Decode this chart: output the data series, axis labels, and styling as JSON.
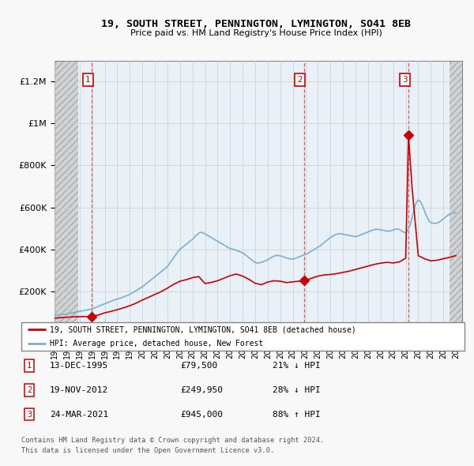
{
  "title": "19, SOUTH STREET, PENNINGTON, LYMINGTON, SO41 8EB",
  "subtitle": "Price paid vs. HM Land Registry's House Price Index (HPI)",
  "legend_line1": "19, SOUTH STREET, PENNINGTON, LYMINGTON, SO41 8EB (detached house)",
  "legend_line2": "HPI: Average price, detached house, New Forest",
  "footer1": "Contains HM Land Registry data © Crown copyright and database right 2024.",
  "footer2": "This data is licensed under the Open Government Licence v3.0.",
  "sale_points": [
    {
      "num": 1,
      "year": 1995.96,
      "price": 79500
    },
    {
      "num": 2,
      "year": 2012.88,
      "price": 249950
    },
    {
      "num": 3,
      "year": 2021.22,
      "price": 945000
    }
  ],
  "table_rows": [
    {
      "num": "1",
      "date": "13-DEC-1995",
      "price": "£79,500",
      "change": "21% ↓ HPI"
    },
    {
      "num": "2",
      "date": "19-NOV-2012",
      "price": "£249,950",
      "change": "28% ↓ HPI"
    },
    {
      "num": "3",
      "date": "24-MAR-2021",
      "price": "£945,000",
      "change": "88% ↑ HPI"
    }
  ],
  "hpi_x": [
    1993.0,
    1993.08,
    1993.17,
    1993.25,
    1993.33,
    1993.42,
    1993.5,
    1993.58,
    1993.67,
    1993.75,
    1993.83,
    1993.92,
    1994.0,
    1994.08,
    1994.17,
    1994.25,
    1994.33,
    1994.42,
    1994.5,
    1994.58,
    1994.67,
    1994.75,
    1994.83,
    1994.92,
    1995.0,
    1995.08,
    1995.17,
    1995.25,
    1995.33,
    1995.42,
    1995.5,
    1995.58,
    1995.67,
    1995.75,
    1995.83,
    1995.92,
    1996.0,
    1996.08,
    1996.17,
    1996.25,
    1996.33,
    1996.42,
    1996.5,
    1996.58,
    1996.67,
    1996.75,
    1996.83,
    1996.92,
    1997.0,
    1997.08,
    1997.17,
    1997.25,
    1997.33,
    1997.42,
    1997.5,
    1997.58,
    1997.67,
    1997.75,
    1997.83,
    1997.92,
    1998.0,
    1998.08,
    1998.17,
    1998.25,
    1998.33,
    1998.42,
    1998.5,
    1998.58,
    1998.67,
    1998.75,
    1998.83,
    1998.92,
    1999.0,
    1999.08,
    1999.17,
    1999.25,
    1999.33,
    1999.42,
    1999.5,
    1999.58,
    1999.67,
    1999.75,
    1999.83,
    1999.92,
    2000.0,
    2000.08,
    2000.17,
    2000.25,
    2000.33,
    2000.42,
    2000.5,
    2000.58,
    2000.67,
    2000.75,
    2000.83,
    2000.92,
    2001.0,
    2001.08,
    2001.17,
    2001.25,
    2001.33,
    2001.42,
    2001.5,
    2001.58,
    2001.67,
    2001.75,
    2001.83,
    2001.92,
    2002.0,
    2002.08,
    2002.17,
    2002.25,
    2002.33,
    2002.42,
    2002.5,
    2002.58,
    2002.67,
    2002.75,
    2002.83,
    2002.92,
    2003.0,
    2003.08,
    2003.17,
    2003.25,
    2003.33,
    2003.42,
    2003.5,
    2003.58,
    2003.67,
    2003.75,
    2003.83,
    2003.92,
    2004.0,
    2004.08,
    2004.17,
    2004.25,
    2004.33,
    2004.42,
    2004.5,
    2004.58,
    2004.67,
    2004.75,
    2004.83,
    2004.92,
    2005.0,
    2005.08,
    2005.17,
    2005.25,
    2005.33,
    2005.42,
    2005.5,
    2005.58,
    2005.67,
    2005.75,
    2005.83,
    2005.92,
    2006.0,
    2006.08,
    2006.17,
    2006.25,
    2006.33,
    2006.42,
    2006.5,
    2006.58,
    2006.67,
    2006.75,
    2006.83,
    2006.92,
    2007.0,
    2007.08,
    2007.17,
    2007.25,
    2007.33,
    2007.42,
    2007.5,
    2007.58,
    2007.67,
    2007.75,
    2007.83,
    2007.92,
    2008.0,
    2008.08,
    2008.17,
    2008.25,
    2008.33,
    2008.42,
    2008.5,
    2008.58,
    2008.67,
    2008.75,
    2008.83,
    2008.92,
    2009.0,
    2009.08,
    2009.17,
    2009.25,
    2009.33,
    2009.42,
    2009.5,
    2009.58,
    2009.67,
    2009.75,
    2009.83,
    2009.92,
    2010.0,
    2010.08,
    2010.17,
    2010.25,
    2010.33,
    2010.42,
    2010.5,
    2010.58,
    2010.67,
    2010.75,
    2010.83,
    2010.92,
    2011.0,
    2011.08,
    2011.17,
    2011.25,
    2011.33,
    2011.42,
    2011.5,
    2011.58,
    2011.67,
    2011.75,
    2011.83,
    2011.92,
    2012.0,
    2012.08,
    2012.17,
    2012.25,
    2012.33,
    2012.42,
    2012.5,
    2012.58,
    2012.67,
    2012.75,
    2012.83,
    2012.92,
    2013.0,
    2013.08,
    2013.17,
    2013.25,
    2013.33,
    2013.42,
    2013.5,
    2013.58,
    2013.67,
    2013.75,
    2013.83,
    2013.92,
    2014.0,
    2014.08,
    2014.17,
    2014.25,
    2014.33,
    2014.42,
    2014.5,
    2014.58,
    2014.67,
    2014.75,
    2014.83,
    2014.92,
    2015.0,
    2015.08,
    2015.17,
    2015.25,
    2015.33,
    2015.42,
    2015.5,
    2015.58,
    2015.67,
    2015.75,
    2015.83,
    2015.92,
    2016.0,
    2016.08,
    2016.17,
    2016.25,
    2016.33,
    2016.42,
    2016.5,
    2016.58,
    2016.67,
    2016.75,
    2016.83,
    2016.92,
    2017.0,
    2017.08,
    2017.17,
    2017.25,
    2017.33,
    2017.42,
    2017.5,
    2017.58,
    2017.67,
    2017.75,
    2017.83,
    2017.92,
    2018.0,
    2018.08,
    2018.17,
    2018.25,
    2018.33,
    2018.42,
    2018.5,
    2018.58,
    2018.67,
    2018.75,
    2018.83,
    2018.92,
    2019.0,
    2019.08,
    2019.17,
    2019.25,
    2019.33,
    2019.42,
    2019.5,
    2019.58,
    2019.67,
    2019.75,
    2019.83,
    2019.92,
    2020.0,
    2020.08,
    2020.17,
    2020.25,
    2020.33,
    2020.42,
    2020.5,
    2020.58,
    2020.67,
    2020.75,
    2020.83,
    2020.92,
    2021.0,
    2021.08,
    2021.17,
    2021.25,
    2021.33,
    2021.42,
    2021.5,
    2021.58,
    2021.67,
    2021.75,
    2021.83,
    2021.92,
    2022.0,
    2022.08,
    2022.17,
    2022.25,
    2022.33,
    2022.42,
    2022.5,
    2022.58,
    2022.67,
    2022.75,
    2022.83,
    2022.92,
    2023.0,
    2023.08,
    2023.17,
    2023.25,
    2023.33,
    2023.42,
    2023.5,
    2023.58,
    2023.67,
    2023.75,
    2023.83,
    2023.92,
    2024.0,
    2024.08,
    2024.17,
    2024.25,
    2024.33,
    2024.42,
    2024.5,
    2024.58,
    2024.67,
    2024.75,
    2024.83,
    2024.92,
    2025.0
  ],
  "hpi_y": [
    85000,
    86000,
    86500,
    87000,
    87500,
    88000,
    88500,
    89000,
    89500,
    90000,
    90500,
    91000,
    92000,
    93000,
    94000,
    95000,
    96000,
    97000,
    98000,
    99000,
    100000,
    101000,
    102000,
    103000,
    104000,
    105000,
    106000,
    107000,
    108000,
    109000,
    110000,
    111000,
    112000,
    113000,
    114000,
    115000,
    116000,
    118000,
    120000,
    122000,
    124000,
    126000,
    128000,
    130000,
    132000,
    134000,
    136000,
    138000,
    140000,
    142000,
    144000,
    146000,
    148000,
    150000,
    152000,
    154000,
    156000,
    158000,
    160000,
    162000,
    163000,
    164000,
    165000,
    167000,
    169000,
    171000,
    173000,
    175000,
    177000,
    179000,
    181000,
    183000,
    185000,
    188000,
    191000,
    194000,
    197000,
    200000,
    203000,
    206000,
    209000,
    212000,
    215000,
    218000,
    221000,
    225000,
    229000,
    233000,
    237000,
    241000,
    245000,
    249000,
    253000,
    257000,
    261000,
    265000,
    269000,
    273000,
    277000,
    281000,
    285000,
    289000,
    293000,
    297000,
    301000,
    305000,
    309000,
    313000,
    318000,
    325000,
    332000,
    339000,
    346000,
    353000,
    360000,
    367000,
    374000,
    381000,
    388000,
    395000,
    400000,
    404000,
    408000,
    412000,
    416000,
    420000,
    424000,
    428000,
    432000,
    436000,
    440000,
    444000,
    448000,
    452000,
    458000,
    464000,
    468000,
    472000,
    476000,
    480000,
    481000,
    480000,
    478000,
    476000,
    474000,
    471000,
    468000,
    465000,
    462000,
    459000,
    456000,
    453000,
    450000,
    447000,
    444000,
    441000,
    438000,
    436000,
    433000,
    430000,
    427000,
    424000,
    421000,
    418000,
    415000,
    412000,
    409000,
    406000,
    404000,
    403000,
    401000,
    400000,
    399000,
    397000,
    395000,
    393000,
    391000,
    389000,
    387000,
    385000,
    383000,
    380000,
    376000,
    372000,
    368000,
    364000,
    360000,
    356000,
    352000,
    348000,
    344000,
    340000,
    337000,
    336000,
    335000,
    335000,
    336000,
    337000,
    338000,
    340000,
    342000,
    344000,
    346000,
    348000,
    350000,
    353000,
    356000,
    359000,
    362000,
    365000,
    367000,
    369000,
    370000,
    371000,
    371000,
    370000,
    369000,
    368000,
    366000,
    364000,
    362000,
    360000,
    358000,
    357000,
    356000,
    355000,
    354000,
    354000,
    354000,
    355000,
    356000,
    358000,
    360000,
    362000,
    364000,
    366000,
    368000,
    370000,
    372000,
    374000,
    376000,
    378000,
    380000,
    383000,
    386000,
    389000,
    392000,
    395000,
    398000,
    401000,
    404000,
    407000,
    410000,
    413000,
    416000,
    420000,
    424000,
    428000,
    432000,
    436000,
    440000,
    444000,
    448000,
    452000,
    456000,
    459000,
    462000,
    465000,
    468000,
    470000,
    472000,
    473000,
    474000,
    474000,
    474000,
    473000,
    472000,
    471000,
    470000,
    469000,
    468000,
    467000,
    466000,
    465000,
    464000,
    463000,
    462000,
    461000,
    461000,
    462000,
    463000,
    465000,
    467000,
    469000,
    471000,
    473000,
    475000,
    477000,
    479000,
    481000,
    483000,
    485000,
    487000,
    489000,
    491000,
    493000,
    494000,
    495000,
    495000,
    495000,
    495000,
    494000,
    493000,
    492000,
    491000,
    490000,
    489000,
    488000,
    487000,
    487000,
    487000,
    488000,
    489000,
    490000,
    492000,
    494000,
    496000,
    497000,
    497000,
    496000,
    494000,
    491000,
    488000,
    485000,
    482000,
    479000,
    480000,
    485000,
    492000,
    502000,
    515000,
    530000,
    548000,
    568000,
    588000,
    607000,
    621000,
    630000,
    635000,
    633000,
    628000,
    619000,
    608000,
    596000,
    583000,
    570000,
    558000,
    548000,
    539000,
    531000,
    528000,
    526000,
    525000,
    524000,
    524000,
    524000,
    525000,
    527000,
    530000,
    533000,
    537000,
    541000,
    545000,
    549000,
    553000,
    557000,
    561000,
    565000,
    568000,
    571000,
    573000,
    574000,
    574000,
    574000,
    573000
  ],
  "red_x": [
    1993.0,
    1993.5,
    1994.0,
    1994.5,
    1995.0,
    1995.5,
    1995.96,
    1996.0,
    1996.5,
    1997.0,
    1997.5,
    1998.0,
    1998.5,
    1999.0,
    1999.5,
    2000.0,
    2000.5,
    2001.0,
    2001.5,
    2002.0,
    2002.5,
    2003.0,
    2003.5,
    2004.0,
    2004.5,
    2005.0,
    2005.5,
    2006.0,
    2006.5,
    2007.0,
    2007.5,
    2008.0,
    2008.5,
    2009.0,
    2009.5,
    2010.0,
    2010.5,
    2011.0,
    2011.5,
    2012.0,
    2012.5,
    2012.88,
    2013.0,
    2013.5,
    2014.0,
    2014.5,
    2015.0,
    2015.5,
    2016.0,
    2016.5,
    2017.0,
    2017.5,
    2018.0,
    2018.5,
    2019.0,
    2019.5,
    2020.0,
    2020.5,
    2021.0,
    2021.22,
    2021.5,
    2022.0,
    2022.5,
    2023.0,
    2023.5,
    2024.0,
    2024.5,
    2025.0
  ],
  "red_y": [
    72000,
    74000,
    76000,
    78000,
    79000,
    79500,
    79500,
    80000,
    87000,
    97000,
    104000,
    112000,
    121000,
    131000,
    143000,
    158000,
    171000,
    185000,
    198000,
    215000,
    233000,
    248000,
    255000,
    265000,
    270000,
    237000,
    242000,
    250000,
    262000,
    274000,
    282000,
    272000,
    257000,
    238000,
    231000,
    244000,
    250000,
    248000,
    241000,
    245000,
    248000,
    249950,
    252000,
    262000,
    272000,
    278000,
    280000,
    284000,
    290000,
    296000,
    304000,
    312000,
    320000,
    328000,
    334000,
    338000,
    335000,
    340000,
    358000,
    945000,
    700000,
    370000,
    355000,
    345000,
    348000,
    355000,
    362000,
    370000
  ],
  "ylim": [
    0,
    1300000
  ],
  "xlim_start": 1993.0,
  "xlim_end": 2025.5,
  "hatch_left_end": 1994.92,
  "hatch_right_start": 2024.5,
  "grid_color": "#cccccc",
  "red_color": "#cc0000",
  "blue_color": "#7ab0d4",
  "bg_color": "#e8f0f8",
  "plot_bg": "#f8f8f8",
  "dashed_color": "#dd4444"
}
